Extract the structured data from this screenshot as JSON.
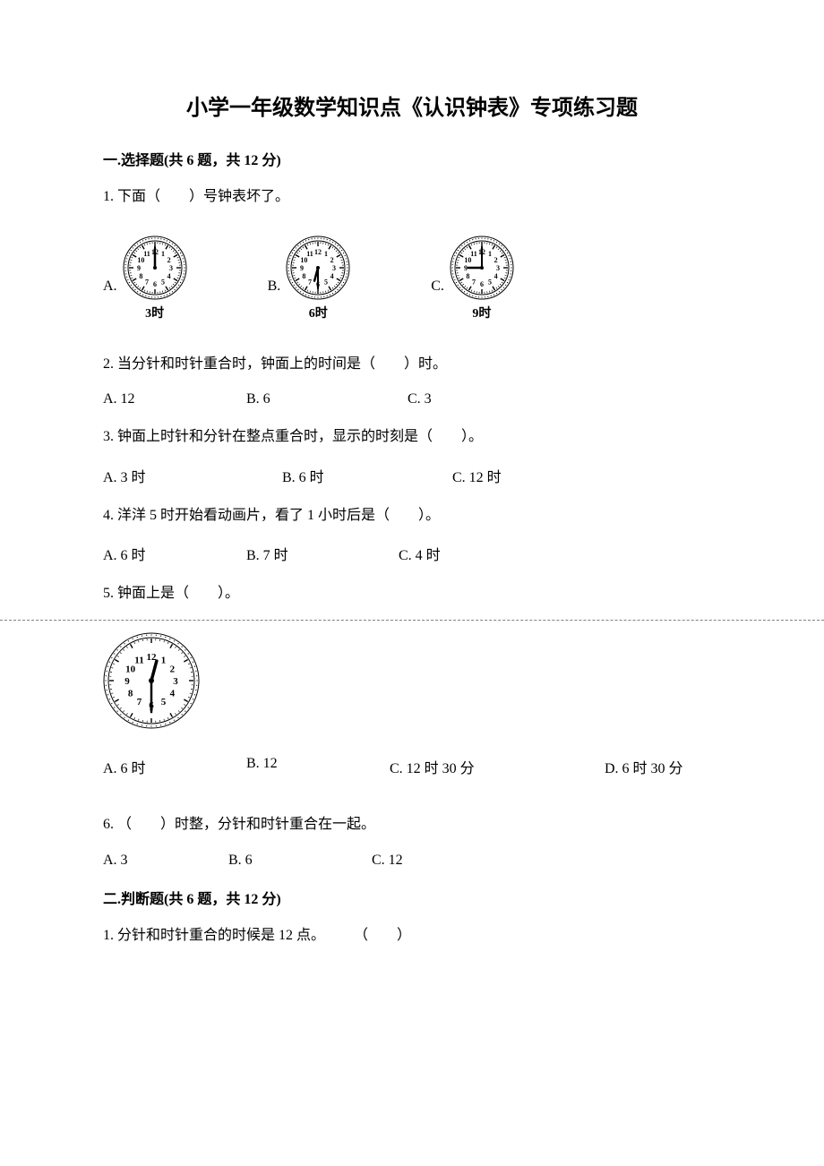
{
  "title": "小学一年级数学知识点《认识钟表》专项练习题",
  "section1": {
    "header": "一.选择题(共 6 题，共 12 分)"
  },
  "q1": {
    "text": "1. 下面（　　）号钟表坏了。",
    "a_label": "A.",
    "a_caption": "3时",
    "a_hour": 12,
    "a_min": 0,
    "b_label": "B.",
    "b_caption": "6时",
    "b_hour": 6,
    "b_min": 30,
    "c_label": "C.",
    "c_caption": "9时",
    "c_hour": 9,
    "c_min": 0
  },
  "q2": {
    "text": "2. 当分针和时针重合时，钟面上的时间是（　　）时。",
    "a": "A. 12",
    "b": "B. 6",
    "c": "C. 3",
    "a_w": 160,
    "b_w": 180,
    "c_w": 0
  },
  "q3": {
    "text": "3. 钟面上时针和分针在整点重合时，显示的时刻是（　　）。",
    "a": "A. 3 时",
    "b": "B. 6 时",
    "c": "C. 12 时",
    "a_w": 200,
    "b_w": 190,
    "c_w": 0
  },
  "q4": {
    "text": "4. 洋洋 5 时开始看动画片，看了 1 小时后是（　　）。",
    "a": "A. 6 时",
    "b": "B. 7 时",
    "c": "C. 4 时",
    "a_w": 160,
    "b_w": 170,
    "c_w": 0
  },
  "q5": {
    "text": "5. 钟面上是（　　）。",
    "clock_hour": 12,
    "clock_min": 30,
    "a": "A. 6 时",
    "b": "B. 12",
    "c": "C. 12 时 30 分",
    "d": "D. 6 时 30 分",
    "a_w": 160,
    "b_w": 160,
    "c_w": 240,
    "d_w": 0
  },
  "q6": {
    "text": "6. （　　）时整，分针和时针重合在一起。",
    "a": "A. 3",
    "b": "B. 6",
    "c": "C. 12",
    "a_w": 140,
    "b_w": 160,
    "c_w": 0
  },
  "section2": {
    "header": "二.判断题(共 6 题，共 12 分)"
  },
  "j1": {
    "text": "1. 分针和时针重合的时候是 12 点。　　　（　　）"
  },
  "clock_style": {
    "size_small": 72,
    "size_large": 108,
    "face_fill": "#ffffff",
    "outer_stroke": "#000000",
    "num_font": 8,
    "num_font_large": 11,
    "tick_color": "#000000",
    "hand_color": "#000000"
  }
}
